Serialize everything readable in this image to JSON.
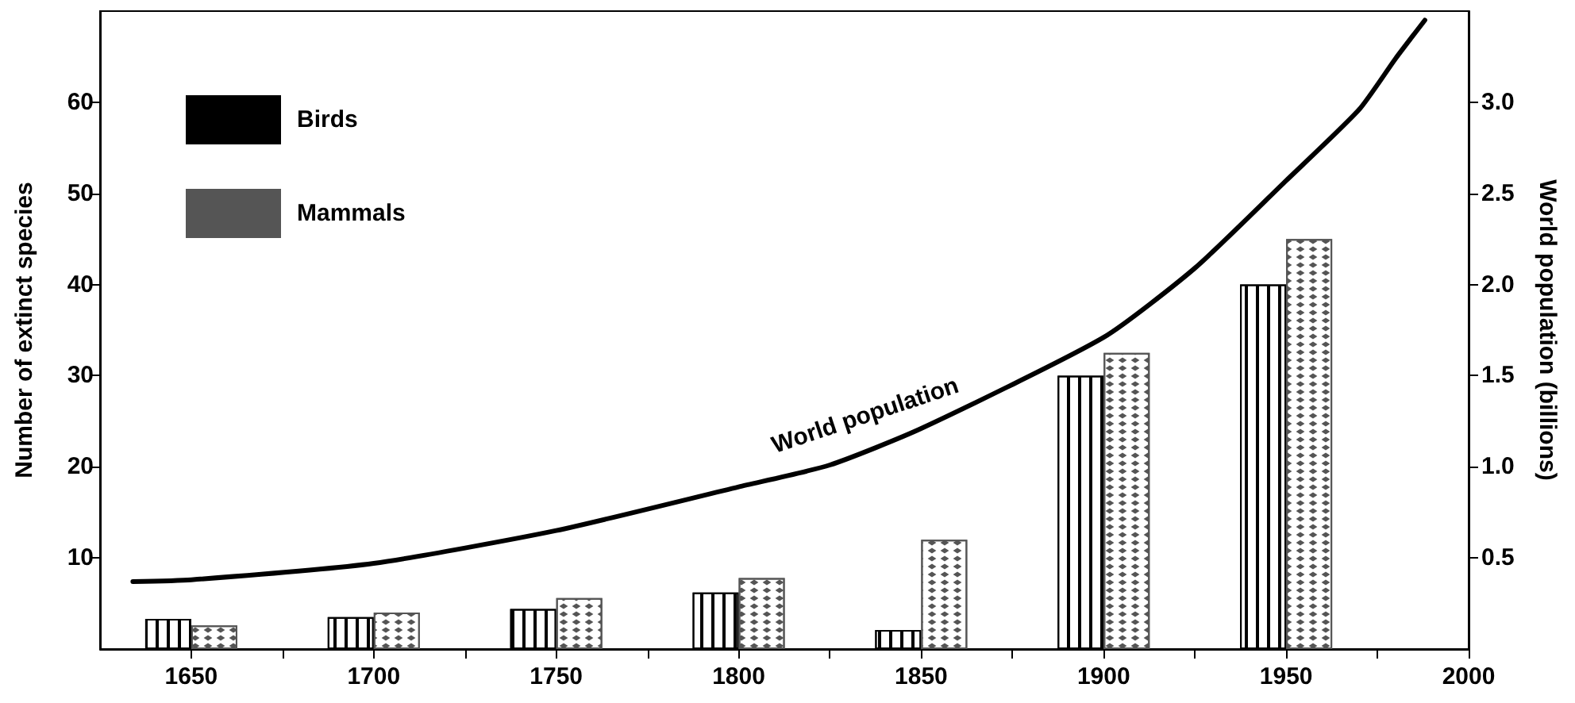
{
  "chart_data": {
    "type": "bar",
    "xlabel": null,
    "ylabel": "Number of extinct species",
    "y2label": "World population (billions)",
    "x": [
      1650,
      1700,
      1750,
      1800,
      1850,
      1900,
      1950
    ],
    "series": [
      {
        "name": "Birds",
        "color": "#000000",
        "values": [
          3.3,
          3.5,
          4.4,
          6.2,
          2.1,
          30,
          40
        ]
      },
      {
        "name": "Mammals",
        "color": "#555555",
        "values": [
          2.6,
          4.0,
          5.6,
          7.8,
          12,
          32.5,
          45
        ]
      },
      {
        "type": "line",
        "axis": "y2",
        "color": "#000000",
        "x": [
          1634,
          1650,
          1700,
          1750,
          1800,
          1825,
          1850,
          1900,
          1925,
          1950,
          1970,
          1980,
          1988
        ],
        "values": [
          0.37,
          0.38,
          0.47,
          0.65,
          0.89,
          1.01,
          1.21,
          1.71,
          2.09,
          2.57,
          2.96,
          3.24,
          3.45
        ]
      }
    ],
    "annotations": [
      "World population"
    ],
    "xlim": [
      1625,
      2000
    ],
    "xticks": [
      1650,
      {
        "value": 1675,
        "label": null
      },
      1700,
      {
        "value": 1725,
        "label": null
      },
      1750,
      {
        "value": 1775,
        "label": null
      },
      1800,
      {
        "value": 1825,
        "label": null
      },
      1850,
      {
        "value": 1875,
        "label": null
      },
      1900,
      {
        "value": 1925,
        "label": null
      },
      1950,
      {
        "value": 1975,
        "label": null
      },
      2000
    ],
    "ylim": [
      0,
      70
    ],
    "yticks": [
      10,
      20,
      30,
      40,
      50,
      60
    ],
    "y2lim": [
      0,
      3.5
    ],
    "y2ticks": [
      0.5,
      {
        "value": 1,
        "label": "1.0"
      },
      1.5,
      {
        "value": 2,
        "label": "2.0"
      },
      2.5,
      {
        "value": 3,
        "label": "3.0"
      }
    ],
    "legend": "top left",
    "marker": "none",
    "line_style": "solid"
  }
}
